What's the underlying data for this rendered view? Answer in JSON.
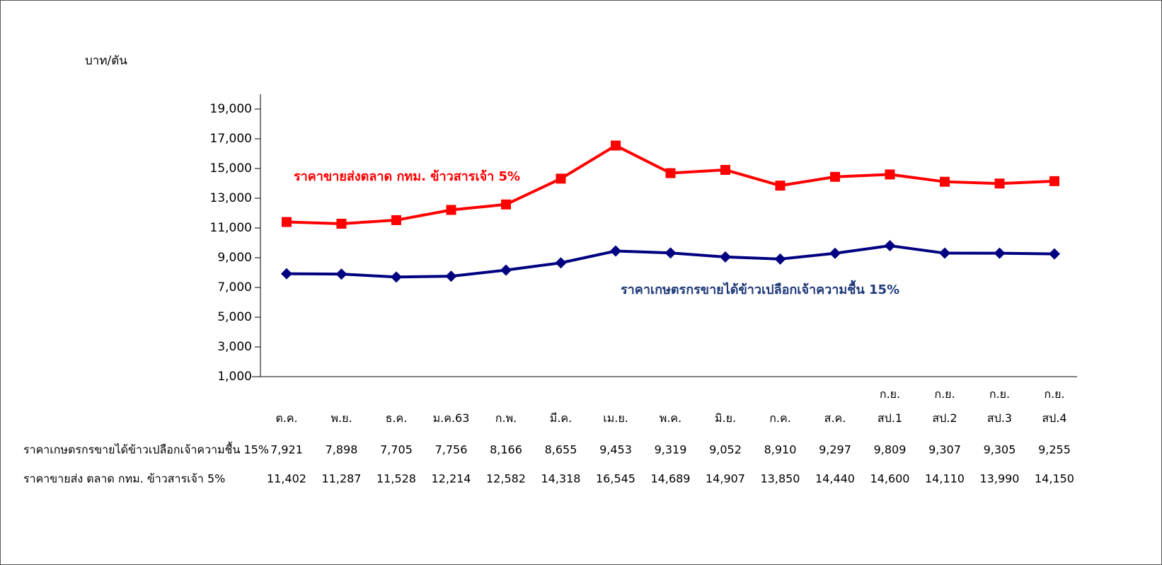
{
  "chart_data": {
    "type": "line",
    "y_label": "บาท/ตัน",
    "categories": [
      "ต.ค.",
      "พ.ย.",
      "ธ.ค.",
      "ม.ค.63",
      "ก.พ.",
      "มี.ค.",
      "เม.ย.",
      "พ.ค.",
      "มิ.ย.",
      "ก.ค.",
      "ส.ค.",
      "ก.ย. สป.1",
      "ก.ย. สป.2",
      "ก.ย. สป.3",
      "ก.ย. สป.4"
    ],
    "series": [
      {
        "name": "ราคาเกษตรกรขายได้ข้าวเปลือกเจ้าความชื้น 15%",
        "color": "#000080",
        "marker": "diamond",
        "values": [
          7921,
          7898,
          7705,
          7756,
          8166,
          8655,
          9453,
          9319,
          9052,
          8910,
          9297,
          9809,
          9307,
          9305,
          9255
        ],
        "value_labels": [
          "7,921",
          "7,898",
          "7,705",
          "7,756",
          "8,166",
          "8,655",
          "9,453",
          "9,319",
          "9,052",
          "8,910",
          "9,297",
          "9,809",
          "9,307",
          "9,305",
          "9,255"
        ]
      },
      {
        "name": "ราคาขายส่ง ตลาด กทม. ข้าวสารเจ้า 5%",
        "color": "#ff0000",
        "marker": "square",
        "values": [
          11402,
          11287,
          11528,
          12214,
          12582,
          14318,
          16545,
          14689,
          14907,
          13850,
          14440,
          14600,
          14110,
          13990,
          14150
        ],
        "value_labels": [
          "11,402",
          "11,287",
          "11,528",
          "12,214",
          "12,582",
          "14,318",
          "16,545",
          "14,689",
          "14,907",
          "13,850",
          "14,440",
          "14,600",
          "14,110",
          "13,990",
          "14,150"
        ]
      }
    ],
    "annotations": [
      {
        "text": "ราคาขายส่งตลาด กทม. ข้าวสารเจ้า 5%",
        "color": "#ff0000"
      },
      {
        "text": "ราคาเกษตรกรขายได้ข้าวเปลือกเจ้าความชื้น 15%",
        "color": "#1f3a7a"
      }
    ],
    "ylim": [
      1000,
      20000
    ],
    "yticks": [
      {
        "value": 1000,
        "label": "1,000"
      },
      {
        "value": 3000,
        "label": "3,000"
      },
      {
        "value": 5000,
        "label": "5,000"
      },
      {
        "value": 7000,
        "label": "7,000"
      },
      {
        "value": 9000,
        "label": "9,000"
      },
      {
        "value": 11000,
        "label": "11,000"
      },
      {
        "value": 13000,
        "label": "13,000"
      },
      {
        "value": 15000,
        "label": "15,000"
      },
      {
        "value": 17000,
        "label": "17,000"
      },
      {
        "value": 19000,
        "label": "19,000"
      }
    ],
    "grid": false
  }
}
